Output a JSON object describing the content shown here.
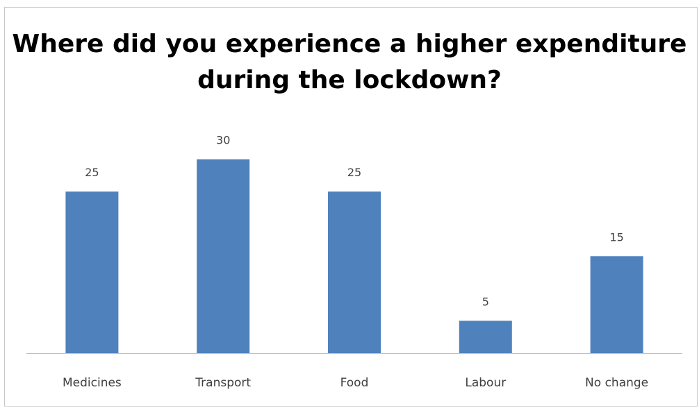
{
  "chart_data": {
    "type": "bar",
    "title": "Where did you experience a higher expenditure during the lockdown?",
    "categories": [
      "Medicines",
      "Transport",
      "Food",
      "Labour",
      "No change"
    ],
    "values": [
      25,
      30,
      25,
      5,
      15
    ],
    "ylim": [
      0,
      35
    ],
    "grid": false,
    "legend": "none",
    "bar_color": "#4F81BD",
    "axis_color": "#BFBFBF"
  }
}
